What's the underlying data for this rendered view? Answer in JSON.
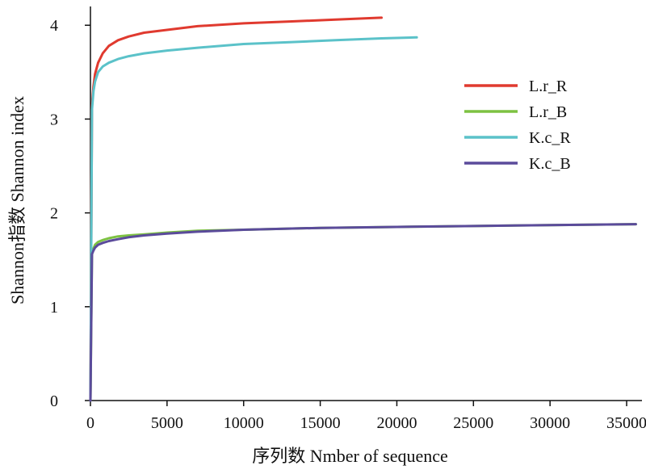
{
  "chart_data": {
    "type": "line",
    "title": "",
    "xlabel": "序列数 Nmber of sequence",
    "ylabel": "Shannon指数 Shannon index",
    "xlim": [
      0,
      36000
    ],
    "ylim": [
      0,
      4.2
    ],
    "xticks": [
      0,
      5000,
      10000,
      15000,
      20000,
      25000,
      30000,
      35000
    ],
    "yticks": [
      0,
      1,
      2,
      3,
      4
    ],
    "grid": false,
    "legend_position": "right",
    "series": [
      {
        "name": "L.r_R",
        "color": "#e03a2f",
        "x": [
          0,
          100,
          200,
          300,
          500,
          800,
          1200,
          1800,
          2500,
          3500,
          5000,
          7000,
          10000,
          13000,
          16000,
          19000
        ],
        "y": [
          0,
          3.15,
          3.35,
          3.48,
          3.6,
          3.7,
          3.78,
          3.84,
          3.88,
          3.92,
          3.95,
          3.99,
          4.02,
          4.04,
          4.06,
          4.08
        ]
      },
      {
        "name": "L.r_B",
        "color": "#7dc242",
        "x": [
          0,
          100,
          200,
          300,
          500,
          800,
          1200,
          1800,
          2500,
          3500,
          5000,
          7000,
          10000,
          15000,
          20000,
          25000,
          30000,
          35600
        ],
        "y": [
          0,
          1.58,
          1.62,
          1.66,
          1.69,
          1.71,
          1.73,
          1.75,
          1.76,
          1.77,
          1.79,
          1.81,
          1.82,
          1.84,
          1.85,
          1.86,
          1.87,
          1.88
        ]
      },
      {
        "name": "K.c_R",
        "color": "#5bc2c9",
        "x": [
          0,
          100,
          200,
          300,
          500,
          800,
          1200,
          1800,
          2500,
          3500,
          5000,
          7000,
          10000,
          13000,
          16000,
          19000,
          21300
        ],
        "y": [
          0,
          3.1,
          3.3,
          3.4,
          3.5,
          3.56,
          3.6,
          3.64,
          3.67,
          3.7,
          3.73,
          3.76,
          3.8,
          3.82,
          3.84,
          3.86,
          3.87
        ]
      },
      {
        "name": "K.c_B",
        "color": "#5b4b9b",
        "x": [
          0,
          100,
          200,
          300,
          500,
          800,
          1200,
          1800,
          2500,
          3500,
          5000,
          7000,
          10000,
          15000,
          20000,
          25000,
          30000,
          35600
        ],
        "y": [
          0,
          1.56,
          1.6,
          1.63,
          1.66,
          1.68,
          1.7,
          1.72,
          1.74,
          1.76,
          1.78,
          1.8,
          1.82,
          1.84,
          1.85,
          1.86,
          1.87,
          1.88
        ]
      }
    ]
  }
}
